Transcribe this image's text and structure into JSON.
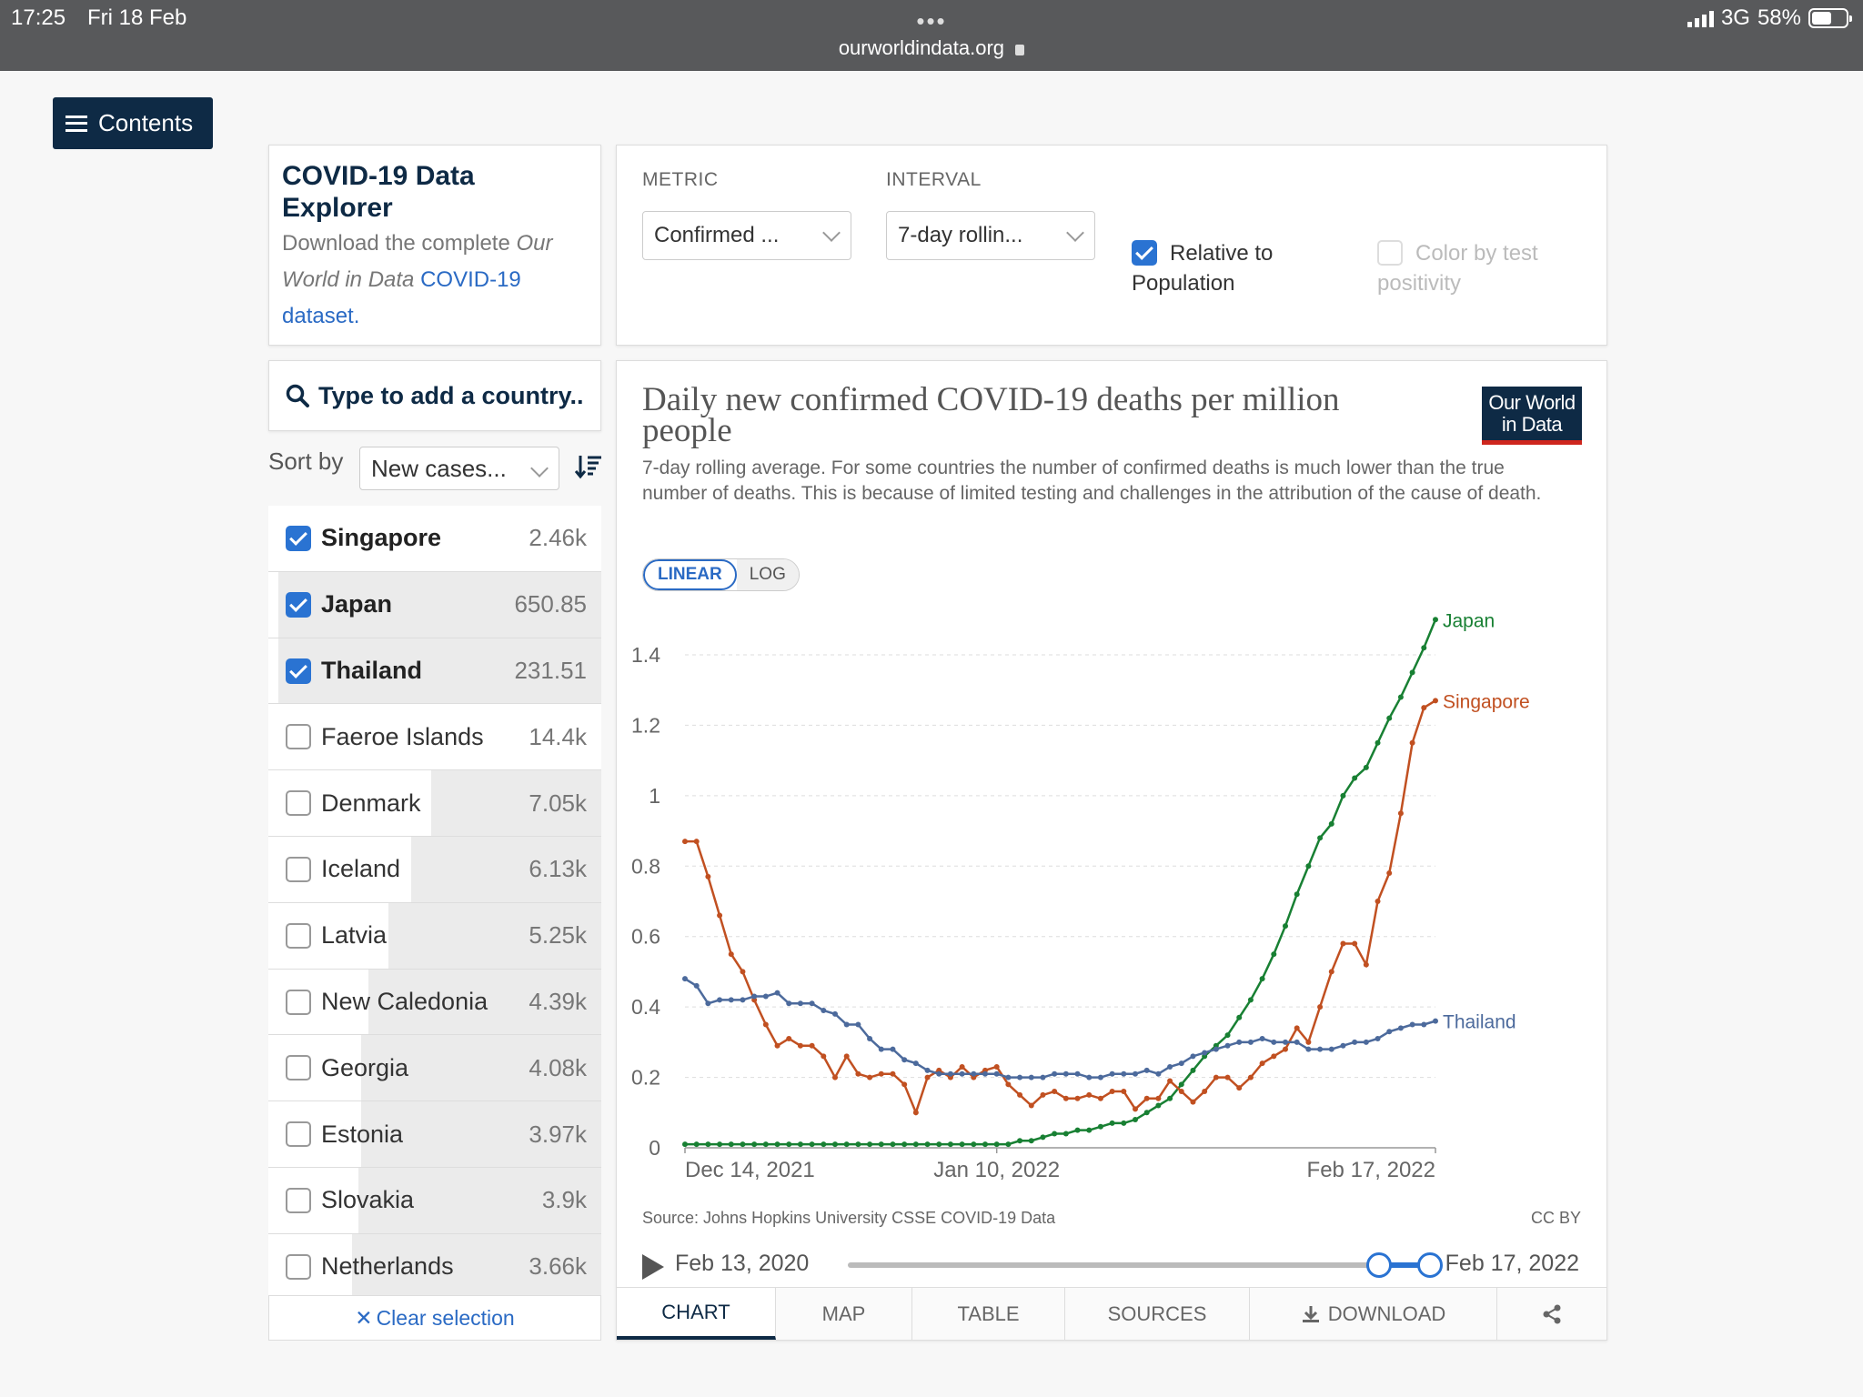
{
  "status_bar": {
    "time": "17:25",
    "date": "Fri 18 Feb",
    "url": "ourworldindata.org",
    "network": "3G",
    "battery": "58%",
    "battery_level": 0.58
  },
  "contents_button": {
    "label": "Contents"
  },
  "explorer": {
    "title": "COVID-19 Data Explorer",
    "desc_prefix": "Download the complete ",
    "desc_em": "Our World in Data",
    "desc_link": "COVID-19 dataset."
  },
  "controls": {
    "metric_label": "METRIC",
    "metric_value": "Confirmed ...",
    "interval_label": "INTERVAL",
    "interval_value": "7-day rollin...",
    "relative_label": "Relative to Population",
    "relative_checked": true,
    "color_test_label": "Color by test positivity",
    "color_test_checked": false
  },
  "search": {
    "placeholder": "Type to add a country.."
  },
  "sort": {
    "label": "Sort by",
    "value": "New cases..."
  },
  "countries": [
    {
      "name": "Singapore",
      "value": "2.46k",
      "checked": true,
      "share": 1.0
    },
    {
      "name": "Japan",
      "value": "650.85",
      "checked": true,
      "share": 0.03
    },
    {
      "name": "Thailand",
      "value": "231.51",
      "checked": true,
      "share": 0.03
    },
    {
      "name": "Faeroe Islands",
      "value": "14.4k",
      "checked": false,
      "share": 1.0
    },
    {
      "name": "Denmark",
      "value": "7.05k",
      "checked": false,
      "share": 0.49
    },
    {
      "name": "Iceland",
      "value": "6.13k",
      "checked": false,
      "share": 0.43
    },
    {
      "name": "Latvia",
      "value": "5.25k",
      "checked": false,
      "share": 0.36
    },
    {
      "name": "New Caledonia",
      "value": "4.39k",
      "checked": false,
      "share": 0.3
    },
    {
      "name": "Georgia",
      "value": "4.08k",
      "checked": false,
      "share": 0.28
    },
    {
      "name": "Estonia",
      "value": "3.97k",
      "checked": false,
      "share": 0.28
    },
    {
      "name": "Slovakia",
      "value": "3.9k",
      "checked": false,
      "share": 0.27
    },
    {
      "name": "Netherlands",
      "value": "3.66k",
      "checked": false,
      "share": 0.25
    }
  ],
  "clear_selection": "Clear selection",
  "chart": {
    "title": "Daily new confirmed COVID-19 deaths per million people",
    "subtitle": "7-day rolling average. For some countries the number of confirmed deaths is much lower than the true number of deaths. This is because of limited testing and challenges in the attribution of the cause of death.",
    "logo_line1": "Our World",
    "logo_line2": "in Data",
    "scale_linear": "LINEAR",
    "scale_log": "LOG",
    "source": "Source: Johns Hopkins University CSSE COVID-19 Data",
    "license": "CC BY"
  },
  "chart_data": {
    "type": "line",
    "title": "Daily new confirmed COVID-19 deaths per million people",
    "ylim": [
      0,
      1.4
    ],
    "yticks": [
      0,
      0.2,
      0.4,
      0.6,
      0.8,
      1,
      1.2,
      1.4
    ],
    "ytick_labels": [
      "0",
      "0.2",
      "0.4",
      "0.6",
      "0.8",
      "1",
      "1.2",
      "1.4"
    ],
    "x_days": 66,
    "xticks": [
      {
        "day": 0,
        "label": "Dec 14, 2021"
      },
      {
        "day": 27,
        "label": "Jan 10, 2022"
      },
      {
        "day": 65,
        "label": "Feb 17, 2022"
      }
    ],
    "grid": true,
    "legend": "line-end labels",
    "series": [
      {
        "name": "Japan",
        "color": "#188033",
        "values": [
          0.01,
          0.01,
          0.01,
          0.01,
          0.01,
          0.01,
          0.01,
          0.01,
          0.01,
          0.01,
          0.01,
          0.01,
          0.01,
          0.01,
          0.01,
          0.01,
          0.01,
          0.01,
          0.01,
          0.01,
          0.01,
          0.01,
          0.01,
          0.01,
          0.01,
          0.01,
          0.01,
          0.01,
          0.01,
          0.02,
          0.02,
          0.03,
          0.04,
          0.04,
          0.05,
          0.05,
          0.06,
          0.07,
          0.07,
          0.08,
          0.1,
          0.12,
          0.14,
          0.18,
          0.22,
          0.26,
          0.29,
          0.32,
          0.37,
          0.42,
          0.48,
          0.55,
          0.63,
          0.72,
          0.8,
          0.88,
          0.92,
          1.0,
          1.05,
          1.08,
          1.15,
          1.22,
          1.28,
          1.35,
          1.42,
          1.5
        ]
      },
      {
        "name": "Singapore",
        "color": "#c15021",
        "values": [
          0.87,
          0.87,
          0.77,
          0.66,
          0.55,
          0.5,
          0.42,
          0.35,
          0.29,
          0.31,
          0.29,
          0.29,
          0.26,
          0.2,
          0.26,
          0.21,
          0.2,
          0.21,
          0.21,
          0.18,
          0.1,
          0.2,
          0.22,
          0.2,
          0.23,
          0.2,
          0.22,
          0.23,
          0.18,
          0.15,
          0.12,
          0.15,
          0.16,
          0.14,
          0.14,
          0.15,
          0.14,
          0.16,
          0.16,
          0.11,
          0.14,
          0.14,
          0.19,
          0.16,
          0.13,
          0.16,
          0.2,
          0.2,
          0.17,
          0.2,
          0.24,
          0.26,
          0.28,
          0.34,
          0.3,
          0.4,
          0.5,
          0.58,
          0.58,
          0.52,
          0.7,
          0.78,
          0.95,
          1.15,
          1.25,
          1.27
        ]
      },
      {
        "name": "Thailand",
        "color": "#4c6a9c",
        "values": [
          0.48,
          0.46,
          0.41,
          0.42,
          0.42,
          0.42,
          0.43,
          0.43,
          0.44,
          0.41,
          0.41,
          0.41,
          0.39,
          0.38,
          0.35,
          0.35,
          0.31,
          0.28,
          0.28,
          0.25,
          0.24,
          0.22,
          0.21,
          0.21,
          0.21,
          0.21,
          0.21,
          0.21,
          0.2,
          0.2,
          0.2,
          0.2,
          0.21,
          0.21,
          0.21,
          0.2,
          0.2,
          0.21,
          0.21,
          0.21,
          0.22,
          0.21,
          0.23,
          0.24,
          0.26,
          0.27,
          0.28,
          0.29,
          0.3,
          0.3,
          0.31,
          0.3,
          0.3,
          0.3,
          0.28,
          0.28,
          0.28,
          0.29,
          0.3,
          0.3,
          0.31,
          0.33,
          0.34,
          0.35,
          0.35,
          0.36
        ]
      }
    ]
  },
  "timeline": {
    "start": "Feb 13, 2020",
    "end": "Feb 17, 2022"
  },
  "tabs": [
    {
      "label": "CHART",
      "active": true
    },
    {
      "label": "MAP",
      "active": false
    },
    {
      "label": "TABLE",
      "active": false
    },
    {
      "label": "SOURCES",
      "active": false
    },
    {
      "label": "DOWNLOAD",
      "active": false
    }
  ]
}
